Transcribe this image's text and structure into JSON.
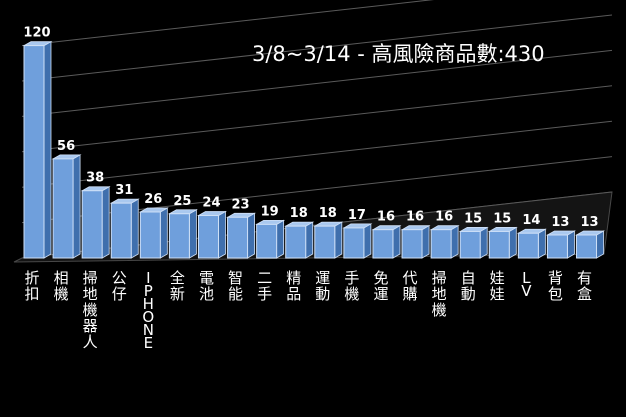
{
  "colors": {
    "background": "#000000",
    "bar_front": "#6f9fdc",
    "bar_side": "#3f6fad",
    "bar_top": "#a9c8ef",
    "bar_edge": "#cfe0f7",
    "gridline": "#5a5a5a",
    "text": "#ffffff"
  },
  "chart_data": {
    "type": "bar",
    "title": "3/8~3/14 - 高風險商品數:430",
    "xlabel": "",
    "ylabel": "",
    "ylim": [
      0,
      120
    ],
    "grid": true,
    "legend": "none",
    "categories": [
      "折扣",
      "相機",
      "掃地機器人",
      "公仔",
      "IPHONE",
      "全新",
      "電池",
      "智能",
      "二手",
      "精品",
      "運動",
      "手機",
      "免運",
      "代購",
      "掃地機",
      "自動",
      "娃娃",
      "LV",
      "背包",
      "有盒"
    ],
    "values": [
      120,
      56,
      38,
      31,
      26,
      25,
      24,
      23,
      19,
      18,
      18,
      17,
      16,
      16,
      16,
      15,
      15,
      14,
      13,
      13
    ],
    "value_labels": [
      "120",
      "56",
      "38",
      "31",
      "26",
      "25",
      "24",
      "23",
      "19",
      "18",
      "18",
      "17",
      "16",
      "16",
      "16",
      "15",
      "15",
      "14",
      "13",
      "13"
    ]
  }
}
